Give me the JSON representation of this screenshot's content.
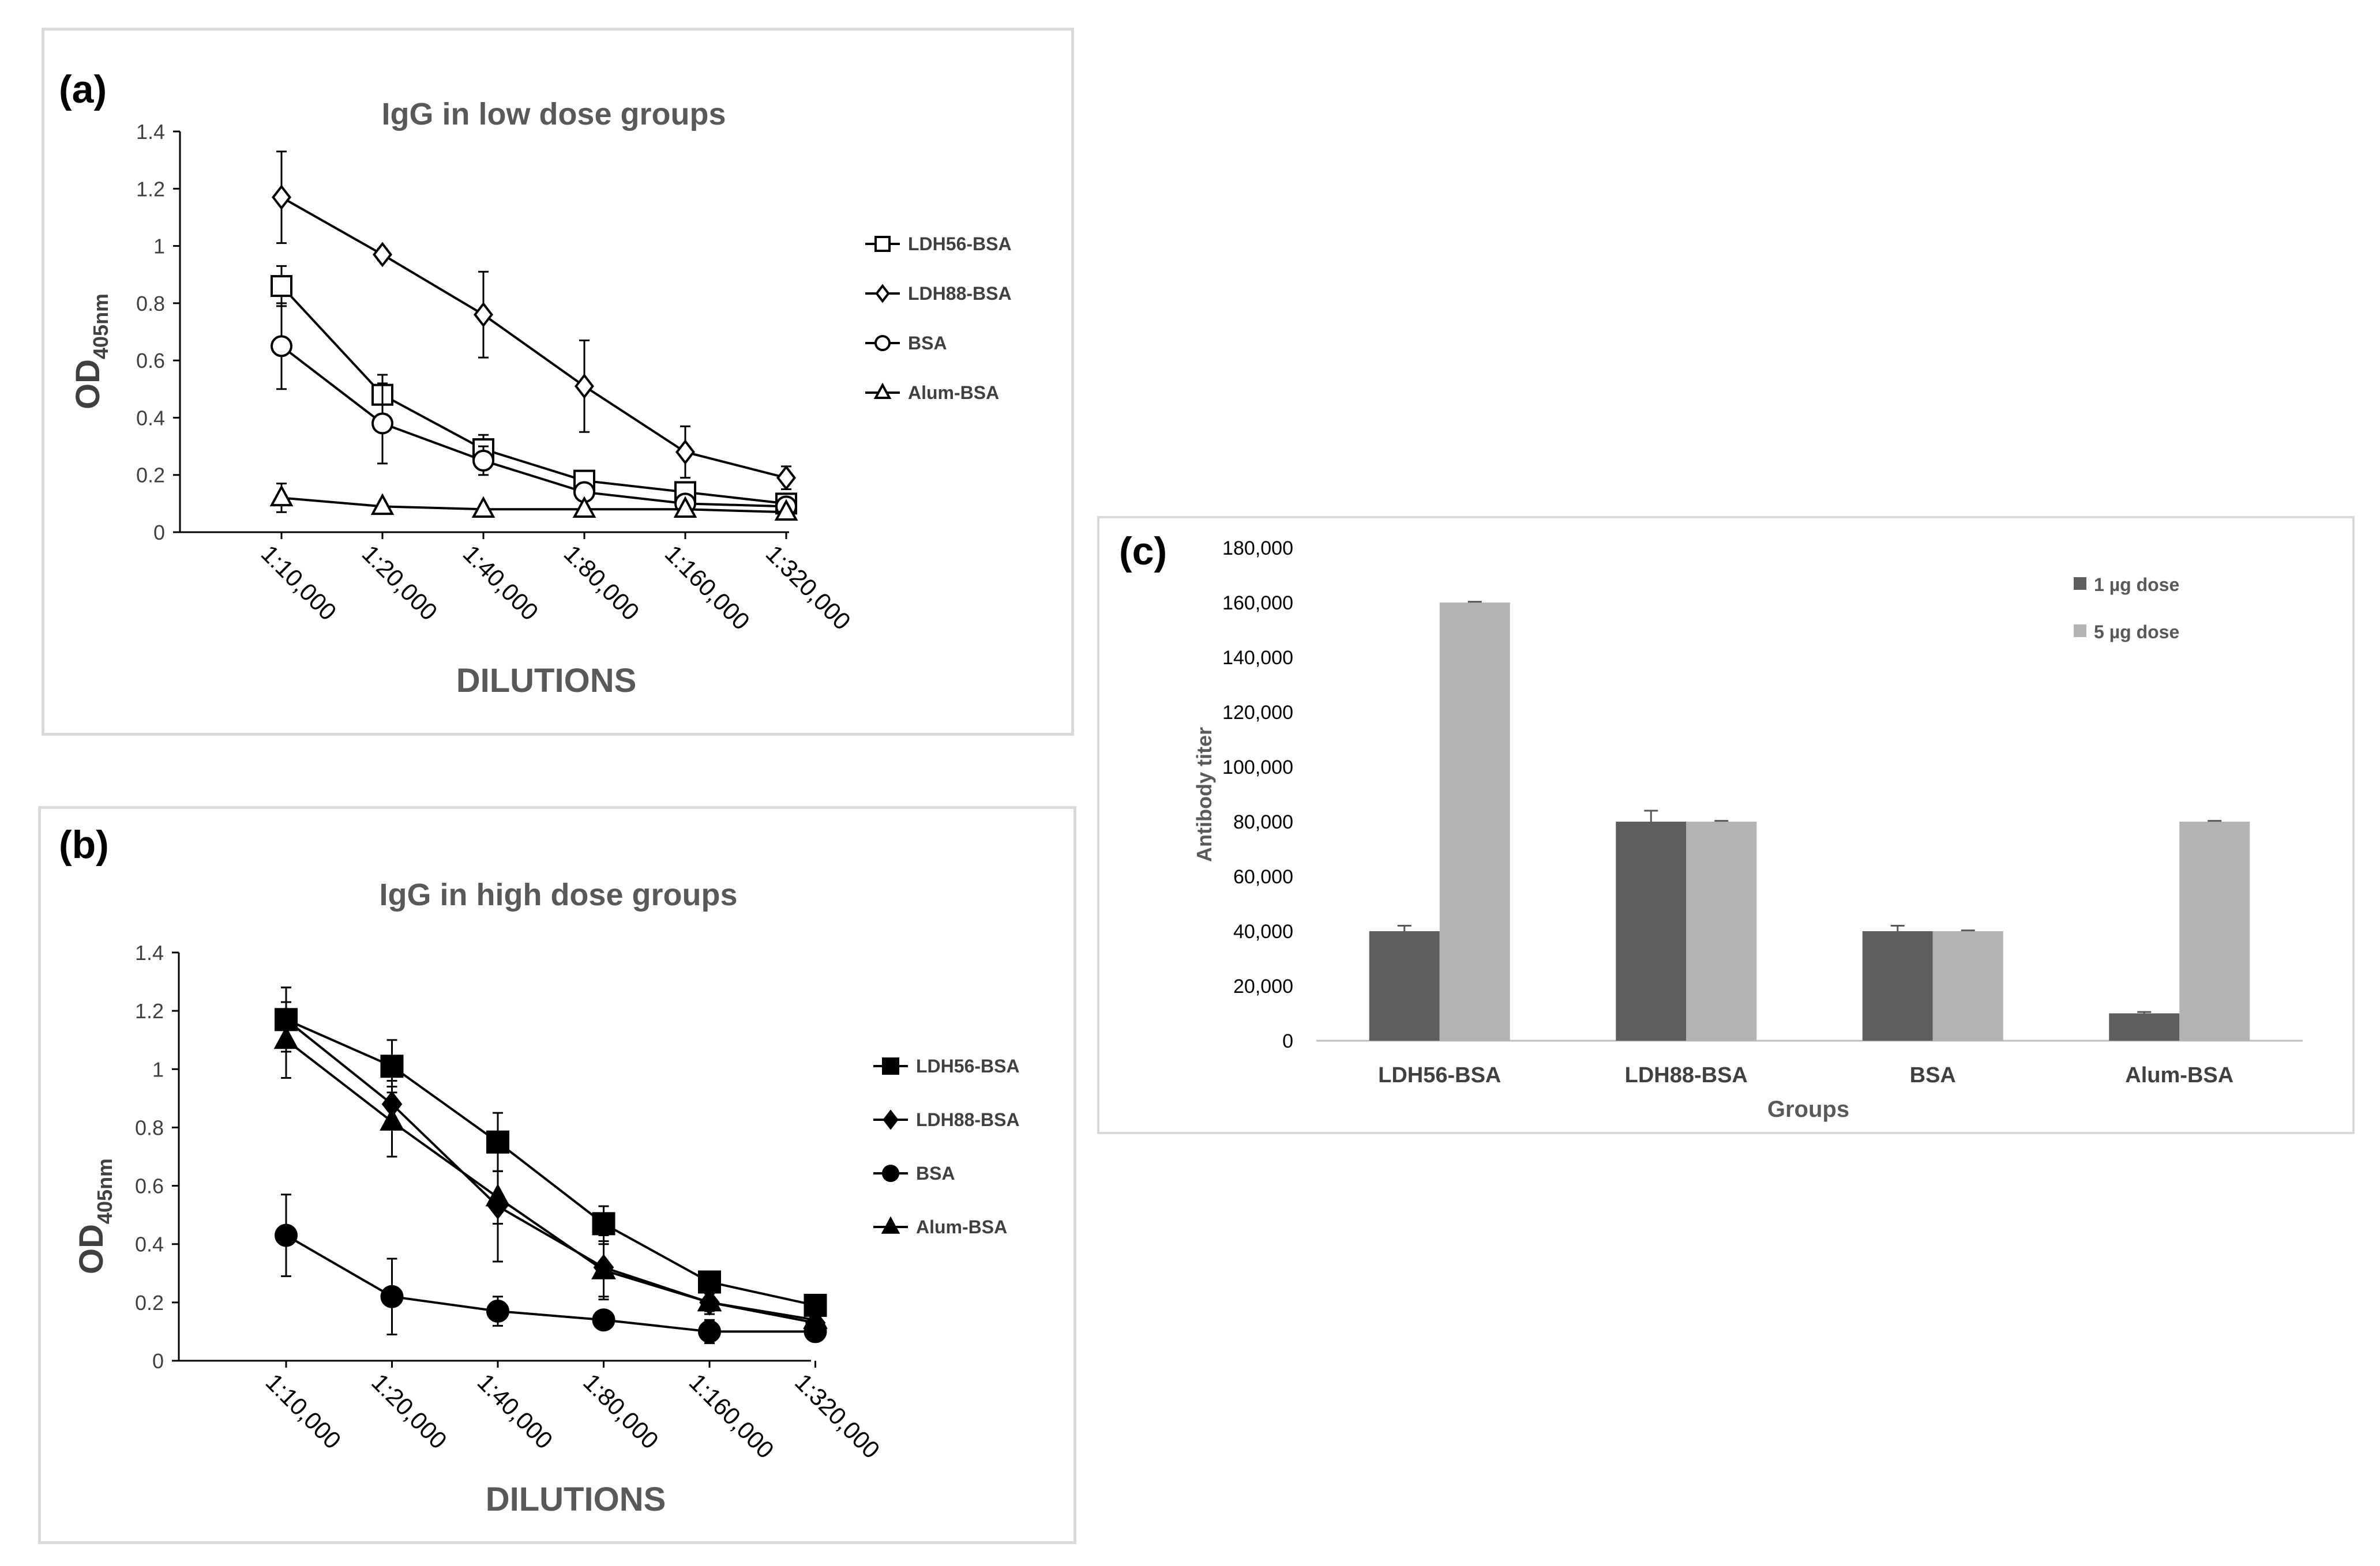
{
  "figure": {
    "colors": {
      "frame": "#d9d9d9",
      "axis": "#000000",
      "series": "#000000",
      "title": "#595959",
      "text": "#404040",
      "bar_dark": "#5e5e5e",
      "bar_light": "#b3b3b3"
    }
  },
  "chart_data": [
    {
      "panel": "(a)",
      "type": "line",
      "title": "IgG in low dose groups",
      "xlabel": "DILUTIONS",
      "ylabel_main": "OD",
      "ylabel_sub": "405nm",
      "ylim": [
        0,
        1.4
      ],
      "yticks": [
        "0",
        "0.2",
        "0.4",
        "0.6",
        "0.8",
        "1",
        "1.2",
        "1.4"
      ],
      "categories": [
        "1:10,000",
        "1:20,000",
        "1:40,000",
        "1:80,000",
        "1:160,000",
        "1:320,000"
      ],
      "legend_position": "right",
      "series": [
        {
          "name": "LDH56-BSA",
          "marker": "square-open",
          "values": [
            0.86,
            0.48,
            0.29,
            0.18,
            0.14,
            0.1
          ],
          "errors": [
            0.07,
            0.07,
            0.05,
            0.02,
            0.02,
            0.02
          ]
        },
        {
          "name": "LDH88-BSA",
          "marker": "diamond-open",
          "values": [
            1.17,
            0.97,
            0.76,
            0.51,
            0.28,
            0.19
          ],
          "errors": [
            0.16,
            0.02,
            0.15,
            0.16,
            0.09,
            0.04
          ]
        },
        {
          "name": "BSA",
          "marker": "circle-open",
          "values": [
            0.65,
            0.38,
            0.25,
            0.14,
            0.1,
            0.09
          ],
          "errors": [
            0.15,
            0.14,
            0.05,
            0.03,
            0.02,
            0.01
          ]
        },
        {
          "name": "Alum-BSA",
          "marker": "triangle-open",
          "values": [
            0.12,
            0.09,
            0.08,
            0.08,
            0.08,
            0.07
          ],
          "errors": [
            0.05,
            0.01,
            0.01,
            0.01,
            0.01,
            0.01
          ]
        }
      ]
    },
    {
      "panel": "(b)",
      "type": "line",
      "title": "IgG in high dose groups",
      "xlabel": "DILUTIONS",
      "ylabel_main": "OD",
      "ylabel_sub": "405nm",
      "ylim": [
        0,
        1.4
      ],
      "yticks": [
        "0",
        "0.2",
        "0.4",
        "0.6",
        "0.8",
        "1",
        "1.2",
        "1.4"
      ],
      "categories": [
        "1:10,000",
        "1:20,000",
        "1:40,000",
        "1:80,000",
        "1:160,000",
        "1:320,000"
      ],
      "legend_position": "right",
      "series": [
        {
          "name": "LDH56-BSA",
          "marker": "square-filled",
          "values": [
            1.17,
            1.01,
            0.75,
            0.47,
            0.27,
            0.19
          ],
          "errors": [
            0.11,
            0.09,
            0.1,
            0.06,
            0.03,
            0.02
          ]
        },
        {
          "name": "LDH88-BSA",
          "marker": "diamond-filled",
          "values": [
            1.17,
            0.88,
            0.53,
            0.32,
            0.2,
            0.13
          ],
          "errors": [
            0.11,
            0.08,
            0.19,
            0.11,
            0.03,
            0.02
          ]
        },
        {
          "name": "BSA",
          "marker": "circle-filled",
          "values": [
            0.43,
            0.22,
            0.17,
            0.14,
            0.1,
            0.1
          ],
          "errors": [
            0.14,
            0.13,
            0.05,
            0.02,
            0.04,
            0.01
          ]
        },
        {
          "name": "Alum-BSA",
          "marker": "triangle-filled",
          "values": [
            1.1,
            0.82,
            0.56,
            0.31,
            0.2,
            0.14
          ],
          "errors": [
            0.13,
            0.12,
            0.09,
            0.09,
            0.04,
            0.02
          ]
        }
      ]
    },
    {
      "panel": "(c)",
      "type": "bar",
      "title": "",
      "xlabel": "Groups",
      "ylabel": "Antibody titer",
      "ylim": [
        0,
        180000
      ],
      "yticks": [
        "0",
        "20,000",
        "40,000",
        "60,000",
        "80,000",
        "100,000",
        "120,000",
        "140,000",
        "160,000",
        "180,000"
      ],
      "categories": [
        "LDH56-BSA",
        "LDH88-BSA",
        "BSA",
        "Alum-BSA"
      ],
      "legend_position": "top-right",
      "series": [
        {
          "name": "1 µg dose",
          "color": "#5e5e5e",
          "values": [
            40000,
            80000,
            40000,
            10000
          ],
          "errors": [
            2000,
            4000,
            2000,
            500
          ]
        },
        {
          "name": "5 µg dose",
          "color": "#b3b3b3",
          "values": [
            160000,
            80000,
            40000,
            80000
          ],
          "errors": [
            300,
            300,
            300,
            300
          ]
        }
      ]
    }
  ]
}
